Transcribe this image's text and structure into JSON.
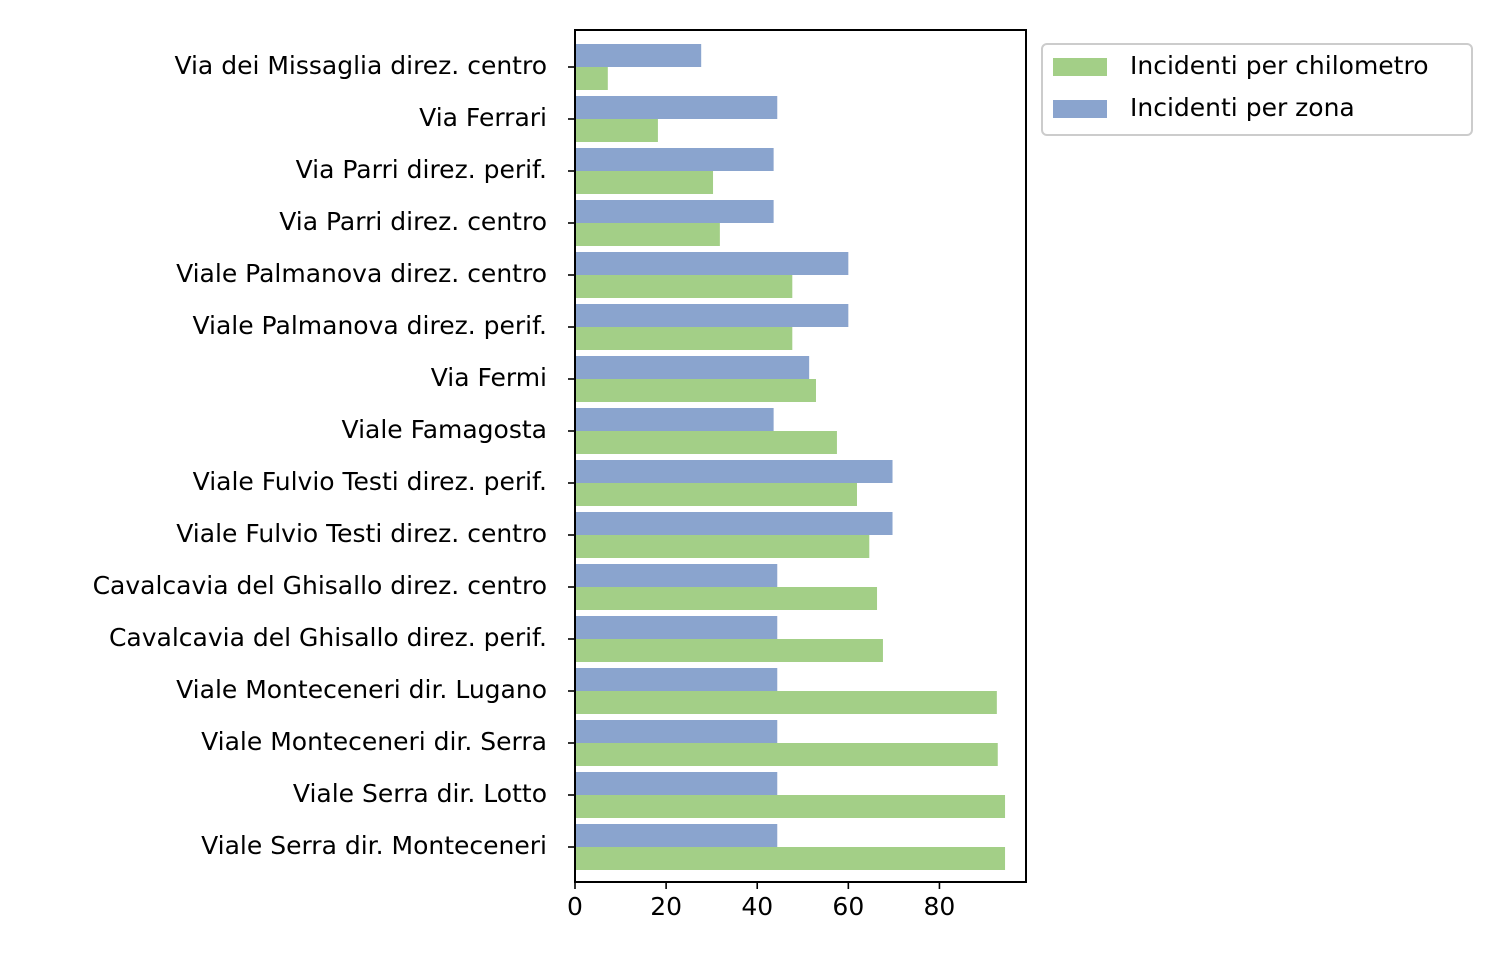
{
  "chart_data": {
    "type": "bar",
    "orientation": "horizontal",
    "title": "",
    "xlabel": "",
    "ylabel": "",
    "xlim": [
      0,
      99
    ],
    "x_ticks": [
      0,
      20,
      40,
      60,
      80
    ],
    "grid": false,
    "legend_position": "outside-top-right",
    "categories": [
      "Via dei Missaglia direz. centro",
      "Via Ferrari",
      "Via Parri direz. perif.",
      "Via Parri direz. centro",
      "Viale Palmanova direz. centro",
      "Viale Palmanova direz. perif.",
      "Via Fermi",
      "Viale Famagosta",
      "Viale Fulvio Testi direz. perif.",
      "Viale Fulvio Testi direz. centro",
      "Cavalcavia del Ghisallo direz. centro",
      "Cavalcavia del Ghisallo direz. perif.",
      "Viale Monteceneri dir. Lugano",
      "Viale Monteceneri dir. Serra",
      "Viale Serra dir. Lotto",
      "Viale Serra dir. Monteceneri"
    ],
    "series": [
      {
        "name": "Incidenti per chilometro",
        "color": "#a3cf87",
        "values": [
          7.2,
          18.2,
          30.3,
          31.8,
          47.7,
          47.7,
          52.9,
          57.5,
          61.9,
          64.6,
          66.3,
          67.6,
          92.6,
          92.8,
          94.4,
          94.4
        ]
      },
      {
        "name": "Incidenti per zona",
        "color": "#8aa4ce",
        "values": [
          27.7,
          44.4,
          43.6,
          43.6,
          60.0,
          60.0,
          51.4,
          43.6,
          69.7,
          69.7,
          44.4,
          44.4,
          44.4,
          44.4,
          44.4,
          44.4
        ]
      }
    ]
  }
}
